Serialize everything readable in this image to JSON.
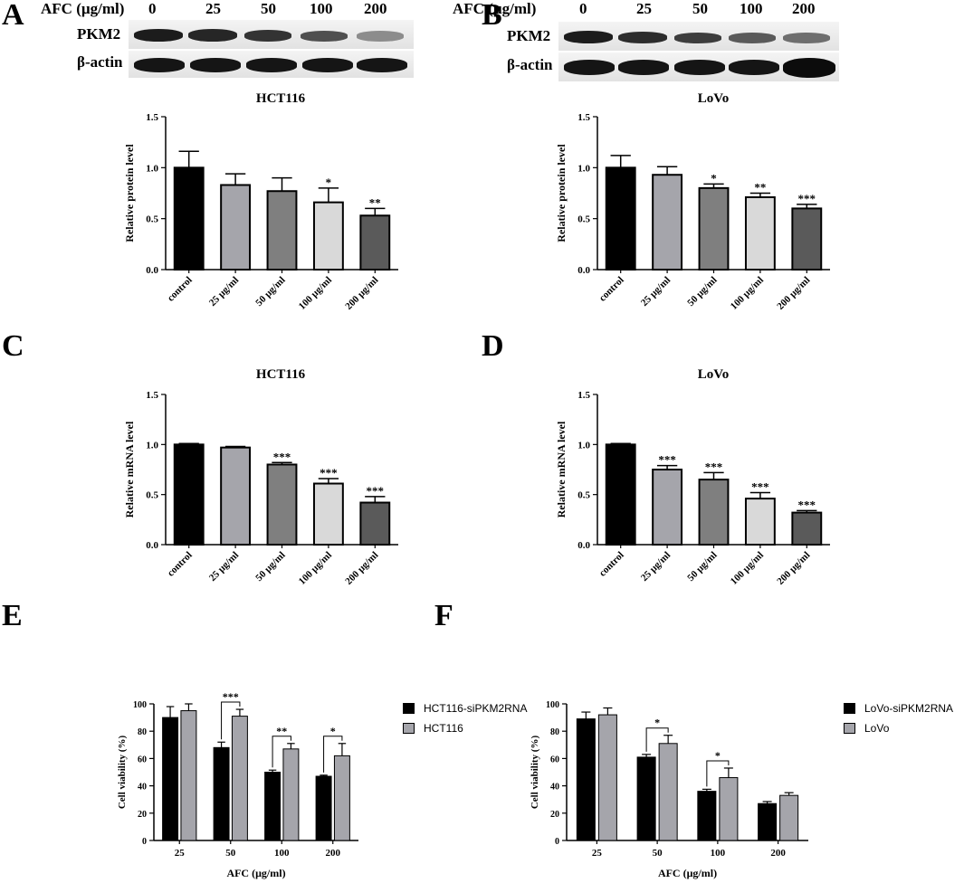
{
  "panels": {
    "A": "A",
    "B": "B",
    "C": "C",
    "D": "D",
    "E": "E",
    "F": "F"
  },
  "western_blot": {
    "afc_label": "AFC (µg/ml)",
    "concentrations": [
      "0",
      "25",
      "50",
      "100",
      "200"
    ],
    "rows": [
      "PKM2",
      "β-actin"
    ]
  },
  "colors": {
    "control": "#000000",
    "c25": "#a5a5ab",
    "c50": "#7f7f7f",
    "c100": "#d9d9d9",
    "c200": "#5a5a5a",
    "siRNA": "#000000",
    "parent": "#a5a5ab"
  },
  "legends": {
    "E": [
      "HCT116-siPKM2RNA",
      "HCT116"
    ],
    "F": [
      "LoVo-siPKM2RNA",
      "LoVo"
    ]
  },
  "chart_data": [
    {
      "id": "A",
      "type": "bar",
      "title": "HCT116",
      "ylabel": "Relative protein level",
      "ylim": [
        0,
        1.5
      ],
      "yticks": [
        "0.0",
        "0.5",
        "1.0",
        "1.5"
      ],
      "categories": [
        "control",
        "25 μg/ml",
        "50 μg/ml",
        "100 μg/ml",
        "200 μg/ml"
      ],
      "values": [
        1.0,
        0.83,
        0.77,
        0.66,
        0.53
      ],
      "errors": [
        0.16,
        0.11,
        0.13,
        0.14,
        0.07
      ],
      "annotations": [
        "",
        "",
        "",
        "*",
        "**"
      ]
    },
    {
      "id": "B",
      "type": "bar",
      "title": "LoVo",
      "ylabel": "Relative protein level",
      "ylim": [
        0,
        1.5
      ],
      "yticks": [
        "0.0",
        "0.5",
        "1.0",
        "1.5"
      ],
      "categories": [
        "control",
        "25 μg/ml",
        "50 μg/ml",
        "100 μg/ml",
        "200 μg/ml"
      ],
      "values": [
        1.0,
        0.93,
        0.8,
        0.71,
        0.6
      ],
      "errors": [
        0.12,
        0.08,
        0.04,
        0.04,
        0.04
      ],
      "annotations": [
        "",
        "",
        "*",
        "**",
        "***"
      ]
    },
    {
      "id": "C",
      "type": "bar",
      "title": "HCT116",
      "ylabel": "Relative mRNA level",
      "ylim": [
        0,
        1.5
      ],
      "yticks": [
        "0.0",
        "0.5",
        "1.0",
        "1.5"
      ],
      "categories": [
        "control",
        "25 μg/ml",
        "50 μg/ml",
        "100 μg/ml",
        "200 μg/ml"
      ],
      "values": [
        1.0,
        0.97,
        0.8,
        0.61,
        0.42
      ],
      "errors": [
        0.01,
        0.01,
        0.02,
        0.05,
        0.06
      ],
      "annotations": [
        "",
        "",
        "***",
        "***",
        "***"
      ]
    },
    {
      "id": "D",
      "type": "bar",
      "title": "LoVo",
      "ylabel": "Relative mRNA level",
      "ylim": [
        0,
        1.5
      ],
      "yticks": [
        "0.0",
        "0.5",
        "1.0",
        "1.5"
      ],
      "categories": [
        "control",
        "25 μg/ml",
        "50 μg/ml",
        "100 μg/ml",
        "200 μg/ml"
      ],
      "values": [
        1.0,
        0.75,
        0.65,
        0.46,
        0.32
      ],
      "errors": [
        0.01,
        0.04,
        0.07,
        0.06,
        0.02
      ],
      "annotations": [
        "",
        "***",
        "***",
        "***",
        "***"
      ]
    },
    {
      "id": "E",
      "type": "bar",
      "xlabel": "AFC (μg/ml)",
      "ylabel": "Cell viability (%)",
      "ylim": [
        0,
        100
      ],
      "yticks": [
        "0",
        "20",
        "40",
        "60",
        "80",
        "100"
      ],
      "categories": [
        "25",
        "50",
        "100",
        "200"
      ],
      "series": [
        {
          "name": "HCT116-siPKM2RNA",
          "values": [
            90,
            68,
            50,
            47
          ],
          "errors": [
            8,
            4,
            1.5,
            0.8
          ]
        },
        {
          "name": "HCT116",
          "values": [
            95,
            91,
            67,
            62
          ],
          "errors": [
            5,
            5,
            4,
            9
          ]
        }
      ],
      "annotations": [
        "",
        "***",
        "**",
        "*"
      ]
    },
    {
      "id": "F",
      "type": "bar",
      "xlabel": "AFC (μg/ml)",
      "ylabel": "Cell viability (%)",
      "ylim": [
        0,
        100
      ],
      "yticks": [
        "0",
        "20",
        "40",
        "60",
        "80",
        "100"
      ],
      "categories": [
        "25",
        "50",
        "100",
        "200"
      ],
      "series": [
        {
          "name": "LoVo-siPKM2RNA",
          "values": [
            89,
            61,
            36,
            27
          ],
          "errors": [
            5,
            2,
            1.5,
            1.5
          ]
        },
        {
          "name": "LoVo",
          "values": [
            92,
            71,
            46,
            33
          ],
          "errors": [
            5,
            6,
            7,
            2
          ]
        }
      ],
      "annotations": [
        "",
        "*",
        "*",
        ""
      ]
    }
  ]
}
